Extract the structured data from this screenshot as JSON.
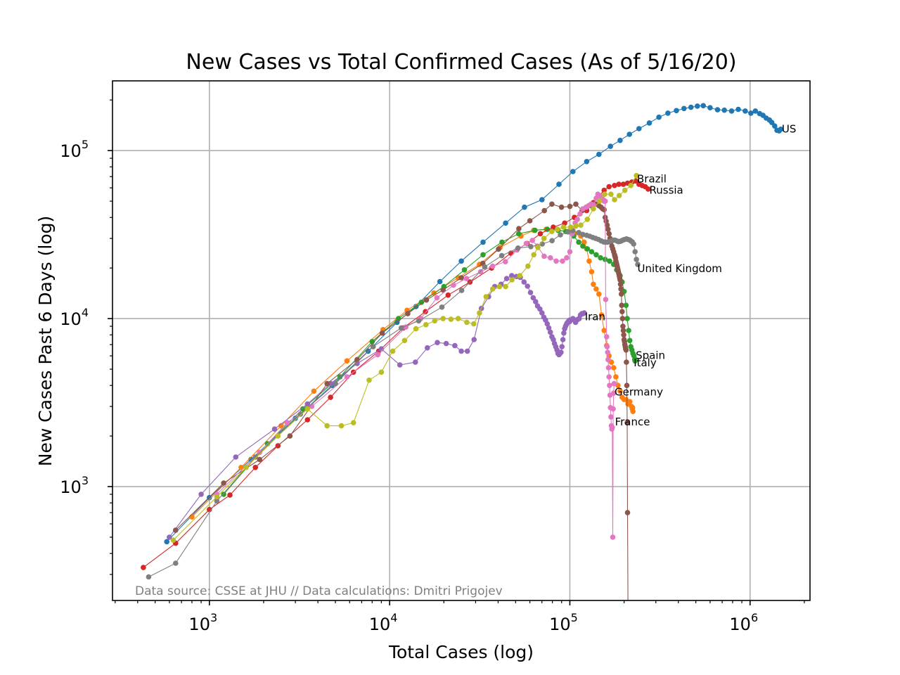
{
  "chart_data": {
    "type": "scatter",
    "title": "New Cases vs Total Confirmed Cases (As of 5/16/20)",
    "xlabel": "Total Cases (log)",
    "ylabel": "New Cases Past 6 Days (log)",
    "xscale": "log",
    "yscale": "log",
    "xlim": [
      290,
      2150000
    ],
    "ylim": [
      210,
      260000
    ],
    "grid": true,
    "x_ticks": [
      {
        "base": "10",
        "exp": "3"
      },
      {
        "base": "10",
        "exp": "4"
      },
      {
        "base": "10",
        "exp": "5"
      },
      {
        "base": "10",
        "exp": "6"
      }
    ],
    "y_ticks": [
      {
        "base": "10",
        "exp": "3"
      },
      {
        "base": "10",
        "exp": "4"
      },
      {
        "base": "10",
        "exp": "5"
      }
    ],
    "annotation": "Data source: CSSE at JHU // Data calculations: Dmitri Prigojev",
    "series": [
      {
        "name": "US",
        "color": "#1f77b4",
        "x": [
          580,
          1000,
          1700,
          3000,
          4800,
          7600,
          11000,
          14000,
          19000,
          25000,
          33000,
          44000,
          56000,
          70000,
          87000,
          104000,
          124000,
          145000,
          168000,
          190000,
          214000,
          242000,
          276000,
          312000,
          350000,
          390000,
          430000,
          470000,
          510000,
          550000,
          600000,
          660000,
          720000,
          790000,
          860000,
          940000,
          1010000,
          1070000,
          1130000,
          1180000,
          1230000,
          1280000,
          1320000,
          1370000,
          1410000,
          1450000,
          1480000
        ],
        "y": [
          470,
          860,
          1450,
          2550,
          4000,
          6400,
          9500,
          11800,
          16600,
          22000,
          28500,
          37000,
          46000,
          51000,
          63000,
          75000,
          86000,
          95000,
          106000,
          115000,
          125000,
          135000,
          146000,
          158000,
          167000,
          173000,
          178000,
          181000,
          184000,
          185000,
          180000,
          175000,
          174000,
          172000,
          176000,
          172000,
          167000,
          172000,
          166000,
          162000,
          156000,
          152000,
          147000,
          140000,
          132000,
          131000,
          134000
        ]
      },
      {
        "name": "Italy",
        "color": "#ff7f0e",
        "x": [
          800,
          1500,
          2500,
          3800,
          5800,
          9200,
          12500,
          17600,
          24000,
          31500,
          41000,
          53600,
          63000,
          74000,
          86000,
          97700,
          106000,
          115000,
          120000,
          124000,
          128000,
          132000,
          135000,
          140000,
          145000,
          150000,
          155000,
          160000,
          165000,
          170000,
          175000,
          180000,
          185000,
          190000,
          195000,
          200000,
          205000,
          210000,
          215000,
          220000,
          222000,
          223000,
          224000
        ],
        "y": [
          660,
          1300,
          2300,
          3700,
          5600,
          8600,
          11200,
          14200,
          17500,
          21000,
          26500,
          31000,
          33500,
          34000,
          33500,
          33000,
          32000,
          31000,
          28500,
          26000,
          22000,
          19000,
          16000,
          15000,
          14000,
          10500,
          8500,
          6900,
          6000,
          5500,
          5100,
          4500,
          4000,
          3700,
          3400,
          3300,
          3300,
          3100,
          3200,
          3000,
          2900,
          2950,
          2800
        ]
      },
      {
        "name": "Spain",
        "color": "#2ca02c",
        "x": [
          1200,
          2100,
          3300,
          5300,
          8000,
          11200,
          15000,
          20000,
          26000,
          33000,
          42000,
          52000,
          64000,
          75000,
          86000,
          95000,
          105000,
          112000,
          118000,
          125000,
          132000,
          140000,
          148000,
          157000,
          166000,
          175000,
          182000,
          190000,
          195000,
          200000,
          205000,
          208000,
          212000,
          215000,
          218000,
          221000,
          224000,
          227000,
          229000,
          230000
        ],
        "y": [
          900,
          1800,
          2900,
          4500,
          7300,
          10000,
          12500,
          15500,
          19500,
          24000,
          28500,
          32000,
          33500,
          34000,
          33500,
          33000,
          31000,
          28500,
          27000,
          26000,
          25000,
          24000,
          23000,
          22500,
          22000,
          21000,
          19500,
          18000,
          16500,
          14500,
          12000,
          10000,
          8500,
          7400,
          6800,
          6500,
          6200,
          6000,
          5700,
          5600
        ]
      },
      {
        "name": "Russia",
        "color": "#d62728",
        "x": [
          430,
          650,
          1000,
          1300,
          1800,
          2400,
          3500,
          4700,
          6300,
          8700,
          11900,
          15800,
          21100,
          27900,
          36800,
          47100,
          57900,
          68600,
          80900,
          93600,
          106000,
          124000,
          135000,
          146000,
          155000,
          165000,
          177000,
          187000,
          198000,
          209000,
          221000,
          232000,
          242000,
          252000,
          262000,
          272000
        ],
        "y": [
          330,
          460,
          730,
          890,
          1300,
          1750,
          2500,
          3400,
          4800,
          6400,
          8800,
          11000,
          13800,
          16500,
          20000,
          24500,
          28000,
          32000,
          35000,
          37000,
          40000,
          44000,
          49000,
          54000,
          58000,
          61000,
          62000,
          63000,
          63000,
          64000,
          65000,
          66000,
          63000,
          62000,
          61000,
          59000
        ]
      },
      {
        "name": "Iran",
        "color": "#9467bd",
        "x": [
          600,
          900,
          1400,
          2300,
          3500,
          4700,
          6600,
          9000,
          11400,
          13900,
          16200,
          18400,
          20600,
          23000,
          25000,
          27000,
          29400,
          32300,
          35400,
          38300,
          41500,
          44600,
          47600,
          50500,
          53100,
          55700,
          58200,
          60500,
          62600,
          64600,
          66200,
          68200,
          70000,
          71700,
          73300,
          74900,
          76400,
          77900,
          79500,
          81000,
          82200,
          83500,
          84800,
          85900,
          87000,
          88200,
          89300,
          90400,
          91500,
          92600,
          93600,
          94600,
          95600,
          96400,
          97400,
          98600,
          99900,
          100000,
          104000,
          106000,
          107600,
          109300,
          110800,
          112700,
          114500,
          116600,
          118400,
          120200
        ],
        "y": [
          500,
          900,
          1500,
          2200,
          3100,
          4100,
          5400,
          6600,
          5300,
          5500,
          6700,
          7200,
          7100,
          6900,
          6400,
          6400,
          7500,
          11500,
          13500,
          15500,
          16000,
          17300,
          18000,
          17800,
          17600,
          16500,
          15600,
          14300,
          13300,
          12600,
          11900,
          11400,
          10800,
          10200,
          9800,
          9300,
          8800,
          8300,
          7800,
          7500,
          7100,
          6800,
          6500,
          6200,
          6100,
          6200,
          6300,
          6800,
          7500,
          8200,
          8700,
          9000,
          9200,
          9400,
          9500,
          9700,
          9600,
          9800,
          10000,
          9800,
          9500,
          9800,
          9900,
          10000,
          10500,
          10700,
          10700,
          10800
        ]
      },
      {
        "name": "France",
        "color": "#8c564b",
        "x": [
          650,
          1200,
          1900,
          2800,
          4500,
          6600,
          9100,
          12600,
          16000,
          19800,
          25000,
          32900,
          40200,
          52100,
          60000,
          72200,
          79500,
          89900,
          100000,
          108000,
          117000,
          124000,
          130000,
          134000,
          137000,
          141000,
          145000,
          149000,
          152000,
          155000,
          157000,
          159000,
          161000,
          163000,
          165000,
          167000,
          169000,
          171000,
          173000,
          175000,
          177000,
          178000,
          179000,
          180000,
          181000,
          182000,
          183000,
          184000,
          185000,
          186000,
          187000,
          188000,
          189000,
          190000,
          191000,
          192000,
          193000,
          194000,
          195000,
          196000,
          197000,
          198000,
          199000,
          200000,
          201000,
          202000,
          203000,
          204000,
          205000,
          206000,
          207000,
          208000,
          209000,
          210000
        ],
        "y": [
          550,
          1050,
          1450,
          2000,
          4100,
          5700,
          8200,
          10700,
          12900,
          14800,
          17500,
          21300,
          25900,
          34300,
          38200,
          43900,
          48000,
          46000,
          46500,
          48000,
          44000,
          46000,
          47000,
          47500,
          48000,
          48000,
          47000,
          46000,
          45000,
          44500,
          40000,
          38000,
          36000,
          34000,
          32000,
          30000,
          28500,
          27000,
          26000,
          25000,
          24000,
          23500,
          23000,
          22000,
          21500,
          21000,
          20500,
          20000,
          19500,
          19000,
          18500,
          18000,
          17500,
          17000,
          16000,
          15000,
          14000,
          12000,
          11000,
          10000,
          9000,
          8500,
          8000,
          7500,
          7300,
          7000,
          6800,
          6600,
          6500,
          5500,
          4000,
          2400,
          700,
          200
        ]
      },
      {
        "name": "Germany",
        "color": "#e377c2",
        "x": [
          1100,
          1900,
          2700,
          3700,
          5800,
          8600,
          12300,
          14900,
          18300,
          22600,
          26700,
          32000,
          37300,
          43900,
          50900,
          57300,
          62000,
          66000,
          72000,
          78000,
          84000,
          91000,
          96000,
          100000,
          103000,
          107000,
          110000,
          114000,
          118000,
          123000,
          127000,
          131000,
          135000,
          140000,
          143000,
          146000,
          149000,
          151000,
          153000,
          155000,
          157000,
          158000,
          160000,
          161000,
          162000,
          163000,
          164000,
          165000,
          166000,
          167000,
          168000,
          169000,
          170000,
          171000,
          172000,
          173000,
          174000,
          175000,
          176000
        ],
        "y": [
          900,
          1600,
          2400,
          3000,
          4500,
          6100,
          8900,
          10000,
          13300,
          15800,
          17300,
          19000,
          20500,
          21800,
          25600,
          28000,
          29200,
          27000,
          23500,
          23000,
          22000,
          22000,
          23000,
          25000,
          32000,
          37000,
          39000,
          42000,
          45000,
          46000,
          47000,
          48000,
          47500,
          52000,
          55000,
          54000,
          53000,
          52000,
          51000,
          50000,
          50000,
          13000,
          7800,
          6800,
          6300,
          5700,
          5100,
          4500,
          4000,
          3500,
          2950,
          2600,
          2300,
          2200,
          2250,
          500,
          2900,
          3600,
          4100
        ]
      },
      {
        "name": "United Kingdom",
        "color": "#7f7f7f",
        "x": [
          460,
          650,
          1100,
          1800,
          3200,
          5000,
          8100,
          11600,
          14500,
          19500,
          25100,
          33700,
          41900,
          51600,
          60700,
          70300,
          79600,
          88600,
          97700,
          104000,
          112000,
          118000,
          124000,
          129000,
          134000,
          139000,
          144000,
          149000,
          154000,
          158000,
          162000,
          166000,
          170000,
          174000,
          178000,
          182000,
          186000,
          190000,
          194000,
          198000,
          202000,
          206000,
          210000,
          214000,
          218000,
          222000,
          226000,
          230000,
          234000,
          238000
        ],
        "y": [
          290,
          350,
          820,
          1500,
          2700,
          4100,
          6800,
          8800,
          9700,
          11700,
          14700,
          20300,
          23700,
          26300,
          26800,
          27800,
          29100,
          31500,
          32800,
          33400,
          32500,
          31700,
          31300,
          30900,
          30400,
          30000,
          29600,
          29000,
          28600,
          28500,
          28500,
          28800,
          29000,
          29300,
          29300,
          29000,
          28700,
          28800,
          29100,
          29400,
          29600,
          29800,
          29600,
          29400,
          29000,
          28600,
          27800,
          25000,
          22500,
          21000
        ]
      },
      {
        "name": "Brazil",
        "color": "#bcbd22",
        "x": [
          630,
          1100,
          1600,
          2400,
          3500,
          4500,
          5400,
          6300,
          7700,
          9000,
          10400,
          12100,
          14000,
          15900,
          17800,
          19800,
          21900,
          24000,
          26800,
          29300,
          31500,
          34300,
          37300,
          40700,
          44000,
          47700,
          52700,
          58500,
          63100,
          66500,
          71900,
          79400,
          85300,
          92200,
          101000,
          108000,
          115000,
          125000,
          135000,
          146000,
          156000,
          169000,
          177000,
          188000,
          202000,
          218000,
          234000
        ],
        "y": [
          480,
          870,
          1300,
          2000,
          2900,
          2300,
          2300,
          2400,
          4300,
          4800,
          6400,
          7400,
          8700,
          9200,
          9700,
          10000,
          9900,
          10000,
          9500,
          9300,
          10800,
          13500,
          15000,
          15500,
          15500,
          17000,
          18000,
          20500,
          24000,
          26500,
          30000,
          33000,
          34000,
          35000,
          35000,
          35500,
          36000,
          39000,
          45000,
          50000,
          55000,
          55000,
          51000,
          54000,
          58000,
          62000,
          71000
        ]
      }
    ],
    "series_labels": [
      {
        "name": "US",
        "x": 1500000,
        "y": 128000
      },
      {
        "name": "Brazil",
        "x": 236000,
        "y": 64500
      },
      {
        "name": "Russia",
        "x": 276000,
        "y": 55500
      },
      {
        "name": "United Kingdom",
        "x": 237000,
        "y": 18900
      },
      {
        "name": "Iran",
        "x": 121000,
        "y": 9750
      },
      {
        "name": "Spain",
        "x": 232000,
        "y": 5750
      },
      {
        "name": "Italy",
        "x": 226000,
        "y": 5200
      },
      {
        "name": "Germany",
        "x": 177000,
        "y": 3480
      },
      {
        "name": "France",
        "x": 178000,
        "y": 2310
      }
    ]
  }
}
